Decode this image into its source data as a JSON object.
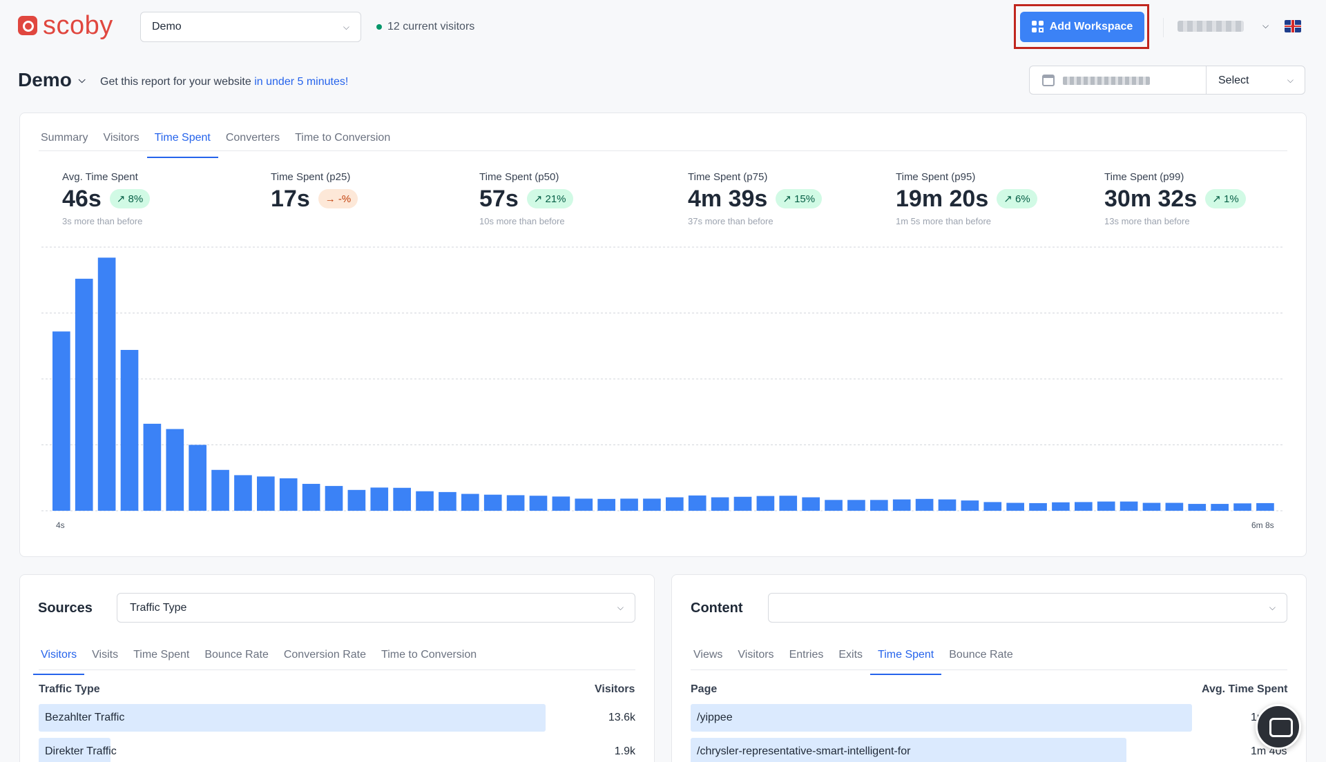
{
  "brand": {
    "name": "scoby",
    "color": "#e0473f"
  },
  "header": {
    "workspace_value": "Demo",
    "current_visitors": "12 current visitors",
    "add_workspace_label": "Add Workspace",
    "accent": "#3b82f6"
  },
  "page": {
    "title": "Demo",
    "report_prefix": "Get this report for your website",
    "report_link": "in under 5 minutes!",
    "date_select_label": "Select"
  },
  "main_tabs": [
    "Summary",
    "Visitors",
    "Time Spent",
    "Converters",
    "Time to Conversion"
  ],
  "kpis": [
    {
      "label": "Avg. Time Spent",
      "value": "46s",
      "change": "8%",
      "trend": "up",
      "sub": "3s more than before"
    },
    {
      "label": "Time Spent (p25)",
      "value": "17s",
      "change": "-%",
      "trend": "neutral",
      "sub": ""
    },
    {
      "label": "Time Spent (p50)",
      "value": "57s",
      "change": "21%",
      "trend": "up",
      "sub": "10s more than before"
    },
    {
      "label": "Time Spent (p75)",
      "value": "4m 39s",
      "change": "15%",
      "trend": "up",
      "sub": "37s more than before"
    },
    {
      "label": "Time Spent (p95)",
      "value": "19m 20s",
      "change": "6%",
      "trend": "up",
      "sub": "1m 5s more than before"
    },
    {
      "label": "Time Spent (p99)",
      "value": "30m 32s",
      "change": "1%",
      "trend": "up",
      "sub": "13s more than before"
    }
  ],
  "chart_data": {
    "type": "bar",
    "x_start_label": "4s",
    "x_end_label": "6m 8s",
    "values": [
      68,
      88,
      96,
      61,
      33,
      31,
      25,
      15.5,
      13.5,
      13,
      12.3,
      10.2,
      9.4,
      7.9,
      8.8,
      8.7,
      7.4,
      7.1,
      6.4,
      6.1,
      5.9,
      5.7,
      5.4,
      4.6,
      4.5,
      4.6,
      4.6,
      5.1,
      5.8,
      5.1,
      5.3,
      5.6,
      5.7,
      5.1,
      4.1,
      4.1,
      4.1,
      4.3,
      4.5,
      4.3,
      3.9,
      3.3,
      3.0,
      2.9,
      3.2,
      3.3,
      3.5,
      3.5,
      3.0,
      3.0,
      2.6,
      2.6,
      2.8,
      2.9
    ],
    "ylim": [
      0,
      100
    ],
    "grid": true,
    "color": "#3b82f6"
  },
  "sources": {
    "title": "Sources",
    "dropdown_value": "Traffic Type",
    "tabs": [
      "Visitors",
      "Visits",
      "Time Spent",
      "Bounce Rate",
      "Conversion Rate",
      "Time to Conversion"
    ],
    "col_name": "Traffic Type",
    "col_value": "Visitors",
    "rows": [
      {
        "name": "Bezahlter Traffic",
        "value": "13.6k",
        "share": 0.85
      },
      {
        "name": "Direkter Traffic",
        "value": "1.9k",
        "share": 0.12
      }
    ]
  },
  "content": {
    "title": "Content",
    "dropdown_value": "",
    "tabs": [
      "Views",
      "Visitors",
      "Entries",
      "Exits",
      "Time Spent",
      "Bounce Rate"
    ],
    "col_name": "Page",
    "col_value": "Avg. Time Spent",
    "rows": [
      {
        "name": "/yippee",
        "value": "1m 5",
        "share": 0.84
      },
      {
        "name": "/chrysler-representative-smart-intelligent-for",
        "value": "1m 40s",
        "share": 0.73
      }
    ]
  }
}
